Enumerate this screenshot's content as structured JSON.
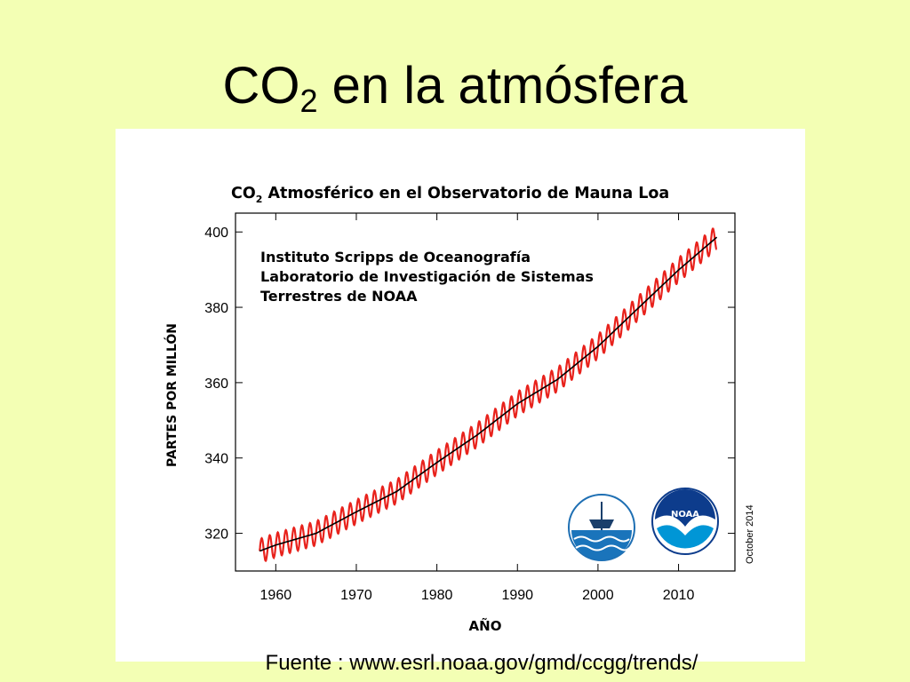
{
  "slide": {
    "title_main": "CO",
    "title_sub": "2",
    "title_rest": " en la atmósfera",
    "source": "Fuente : www.esrl.noaa.gov/gmd/ccgg/trends/"
  },
  "colors": {
    "background": "#f3ffb4",
    "monthly_line": "#e8221c",
    "trend_line": "#000000"
  },
  "chart_data": {
    "type": "line",
    "title_prefix": "CO",
    "title_sub": "2",
    "title_rest": " Atmosférico en el Observatorio de Mauna Loa",
    "institutions": [
      "Instituto Scripps de Oceanografía",
      "Laboratorio de Investigación de Sistemas",
      "Terrestres de NOAA"
    ],
    "xlabel": "AÑO",
    "ylabel": "PARTES POR MILLÓN",
    "date_note": "October 2014",
    "xlim": [
      1955,
      2017
    ],
    "ylim": [
      310,
      405
    ],
    "x_ticks": [
      1960,
      1970,
      1980,
      1990,
      2000,
      2010
    ],
    "y_ticks": [
      320,
      340,
      360,
      380,
      400
    ],
    "grid": false,
    "logos": [
      "scripps-logo",
      "noaa-logo"
    ],
    "series": [
      {
        "role": "monthly",
        "seasonal_amplitude": 3.2,
        "x": [
          1958,
          1960,
          1965,
          1970,
          1975,
          1980,
          1985,
          1990,
          1995,
          2000,
          2005,
          2010,
          2014.75
        ],
        "y": [
          315.3,
          316.9,
          320.0,
          325.7,
          331.1,
          338.8,
          346.1,
          354.4,
          360.9,
          369.6,
          379.8,
          389.9,
          398.6
        ]
      },
      {
        "role": "trend",
        "x": [
          1958,
          1960,
          1965,
          1970,
          1975,
          1980,
          1985,
          1990,
          1995,
          2000,
          2005,
          2010,
          2014.75
        ],
        "y": [
          315.3,
          316.9,
          320.0,
          325.7,
          331.1,
          338.8,
          346.1,
          354.4,
          360.9,
          369.6,
          379.8,
          389.9,
          398.6
        ]
      }
    ]
  }
}
